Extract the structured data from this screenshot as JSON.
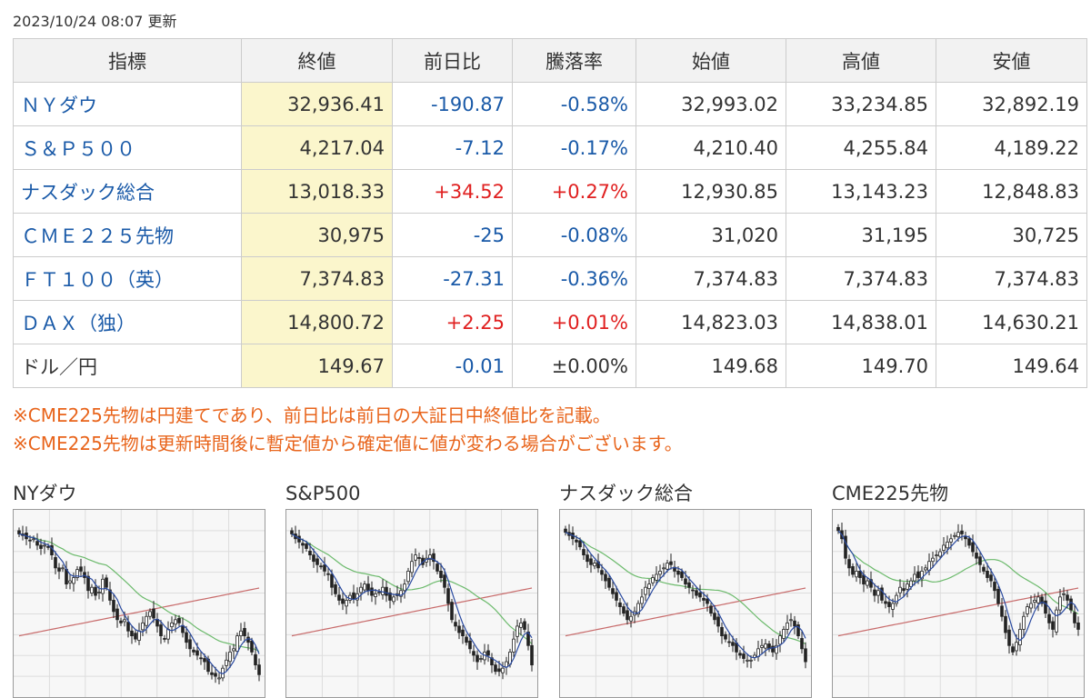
{
  "updated_text": "2023/10/24 08:07 更新",
  "table": {
    "headers": [
      "指標",
      "終値",
      "前日比",
      "騰落率",
      "始値",
      "高値",
      "安値"
    ],
    "rows": [
      {
        "name": "ＮＹダウ",
        "link": true,
        "close": "32,936.41",
        "change": "-190.87",
        "rate": "-0.58%",
        "trend": "neg",
        "open": "32,993.02",
        "high": "33,234.85",
        "low": "32,892.19"
      },
      {
        "name": "Ｓ＆Ｐ５００",
        "link": true,
        "close": "4,217.04",
        "change": "-7.12",
        "rate": "-0.17%",
        "trend": "neg",
        "open": "4,210.40",
        "high": "4,255.84",
        "low": "4,189.22"
      },
      {
        "name": "ナスダック総合",
        "link": true,
        "close": "13,018.33",
        "change": "+34.52",
        "rate": "+0.27%",
        "trend": "pos",
        "open": "12,930.85",
        "high": "13,143.23",
        "low": "12,848.83"
      },
      {
        "name": "ＣＭＥ２２５先物",
        "link": true,
        "close": "30,975",
        "change": "-25",
        "rate": "-0.08%",
        "trend": "neg",
        "open": "31,020",
        "high": "31,195",
        "low": "30,725"
      },
      {
        "name": "ＦＴ１００（英）",
        "link": true,
        "close": "7,374.83",
        "change": "-27.31",
        "rate": "-0.36%",
        "trend": "neg",
        "open": "7,374.83",
        "high": "7,374.83",
        "low": "7,374.83"
      },
      {
        "name": "ＤＡＸ（独）",
        "link": true,
        "close": "14,800.72",
        "change": "+2.25",
        "rate": "+0.01%",
        "trend": "pos",
        "open": "14,823.03",
        "high": "14,838.01",
        "low": "14,630.21"
      },
      {
        "name": "ドル／円",
        "link": false,
        "close": "149.67",
        "change": "-0.01",
        "rate": "±0.00%",
        "trend": "neg",
        "rate_trend": "flat",
        "open": "149.68",
        "high": "149.70",
        "low": "149.64"
      }
    ]
  },
  "notes": [
    "※CME225先物は円建てであり、前日比は前日の大証日中終値比を記載。",
    "※CME225先物は更新時間後に暫定値から確定値に値が変わる場合がございます。"
  ],
  "charts": [
    {
      "title": "NYダウ",
      "closes": [
        93,
        92,
        90,
        89,
        90,
        86,
        84,
        86,
        85,
        80,
        72,
        70,
        72,
        62,
        64,
        66,
        71,
        70,
        66,
        58,
        60,
        55,
        57,
        65,
        60,
        52,
        45,
        40,
        38,
        40,
        33,
        30,
        28,
        33,
        38,
        42,
        45,
        41,
        36,
        30,
        28,
        34,
        38,
        40,
        38,
        32,
        26,
        22,
        20,
        18,
        16,
        14,
        8,
        6,
        5,
        4,
        10,
        15,
        20,
        22,
        30,
        33,
        30,
        26,
        20,
        12,
        6
      ]
    },
    {
      "title": "S&P500",
      "closes": [
        93,
        90,
        88,
        86,
        84,
        80,
        76,
        74,
        73,
        70,
        68,
        60,
        56,
        52,
        50,
        52,
        55,
        53,
        56,
        60,
        62,
        58,
        55,
        56,
        57,
        60,
        55,
        52,
        54,
        56,
        58,
        62,
        70,
        76,
        80,
        78,
        74,
        78,
        80,
        76,
        70,
        66,
        60,
        50,
        40,
        36,
        32,
        30,
        26,
        22,
        18,
        14,
        16,
        20,
        18,
        12,
        8,
        8,
        10,
        14,
        20,
        28,
        36,
        38,
        34,
        24,
        12
      ]
    },
    {
      "title": "ナスダック総合",
      "closes": [
        94,
        92,
        90,
        88,
        85,
        80,
        76,
        74,
        75,
        72,
        68,
        64,
        60,
        56,
        52,
        48,
        44,
        40,
        42,
        45,
        50,
        54,
        60,
        62,
        66,
        68,
        70,
        72,
        75,
        74,
        70,
        68,
        66,
        62,
        60,
        58,
        55,
        54,
        52,
        50,
        44,
        40,
        36,
        30,
        28,
        26,
        24,
        20,
        18,
        16,
        15,
        15,
        18,
        22,
        24,
        25,
        22,
        20,
        24,
        30,
        34,
        38,
        40,
        36,
        30,
        22,
        14
      ]
    },
    {
      "title": "CME225先物",
      "closes": [
        95,
        90,
        78,
        72,
        68,
        70,
        66,
        62,
        64,
        60,
        55,
        58,
        52,
        50,
        48,
        50,
        55,
        60,
        58,
        62,
        64,
        68,
        66,
        70,
        72,
        76,
        78,
        80,
        82,
        86,
        88,
        90,
        92,
        94,
        93,
        90,
        86,
        82,
        78,
        74,
        70,
        66,
        64,
        58,
        50,
        42,
        32,
        24,
        20,
        26,
        34,
        42,
        48,
        50,
        52,
        54,
        50,
        44,
        38,
        34,
        46,
        54,
        56,
        52,
        46,
        38,
        34
      ]
    }
  ]
}
